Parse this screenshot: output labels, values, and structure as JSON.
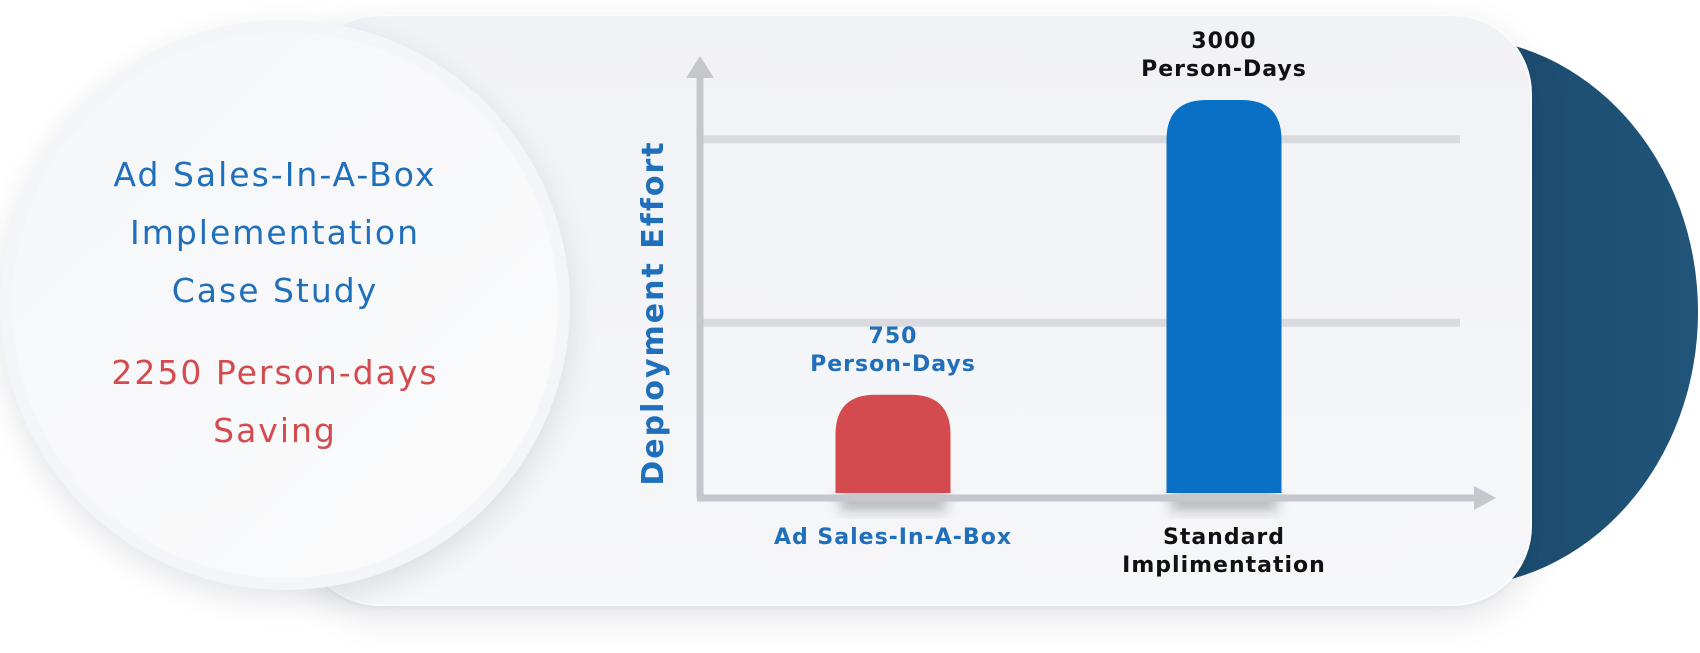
{
  "case_study": {
    "title_lines": [
      "Ad Sales-In-A-Box",
      "Implementation",
      "Case Study"
    ],
    "saving_lines": [
      "2250 Person-days",
      "Saving"
    ]
  },
  "colors": {
    "blue": "#1f6fba",
    "bar_blue": "#0a70c5",
    "red": "#d34b4e",
    "navy": "#1b4b6f",
    "label_dark": "#111111"
  },
  "chart_data": {
    "type": "bar",
    "ylabel": "Deployment Effort",
    "xlabel": "",
    "categories": [
      "Ad Sales-In-A-Box",
      "Standard Implimentation"
    ],
    "category_label_lines": [
      [
        "Ad Sales-In-A-Box"
      ],
      [
        "Standard",
        "Implimentation"
      ]
    ],
    "values": [
      750,
      3000
    ],
    "value_label_lines": [
      [
        "750",
        "Person-Days"
      ],
      [
        "3000",
        "Person-Days"
      ]
    ],
    "bar_colors": [
      "#d34b4e",
      "#0a70c5"
    ],
    "category_label_colors": [
      "#1f6fba",
      "#111111"
    ],
    "value_label_colors": [
      "#1f6fba",
      "#111111"
    ],
    "ylim": [
      0,
      3300
    ],
    "grid_values": [
      1300,
      2700
    ],
    "grid": true,
    "legend": "none"
  }
}
